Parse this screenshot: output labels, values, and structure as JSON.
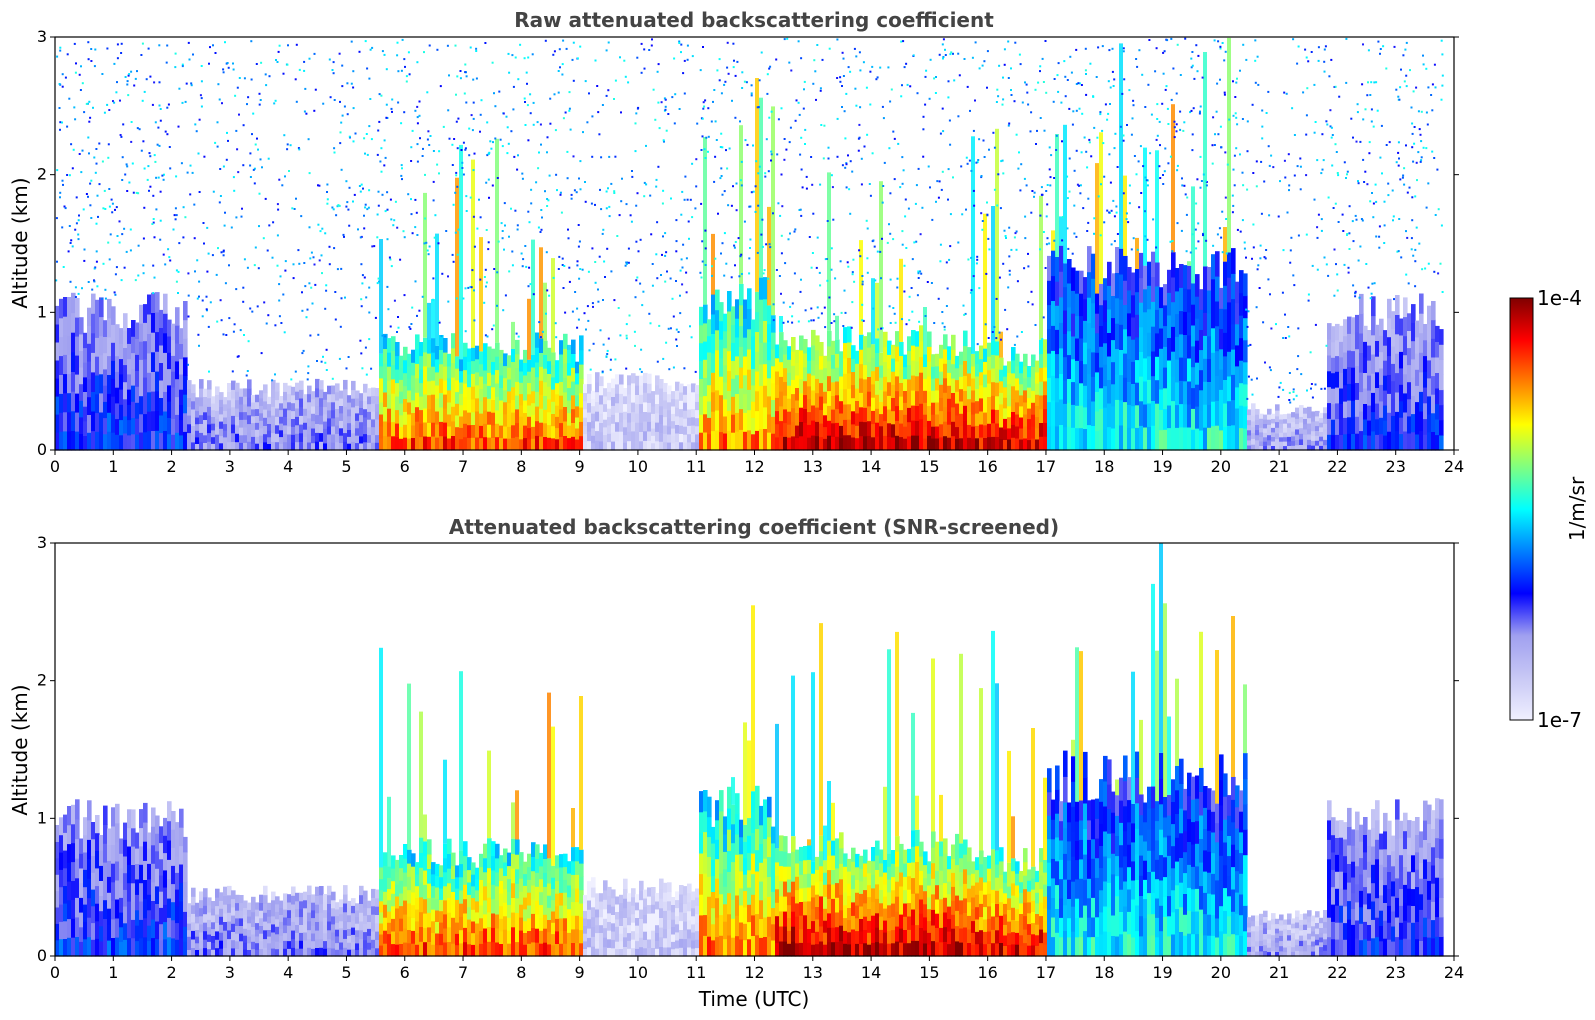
{
  "chart_data": [
    {
      "type": "heatmap",
      "title": "Raw attenuated backscattering coefficient",
      "xlabel": "",
      "ylabel": "Altitude (km)",
      "xlim": [
        0,
        24
      ],
      "ylim": [
        0,
        3
      ],
      "xticks": [
        "0",
        "1",
        "2",
        "3",
        "4",
        "5",
        "6",
        "7",
        "8",
        "9",
        "10",
        "11",
        "12",
        "13",
        "14",
        "15",
        "16",
        "17",
        "18",
        "19",
        "20",
        "21",
        "22",
        "23",
        "24"
      ],
      "yticks": [
        "0",
        "1",
        "2",
        "3"
      ],
      "data_end_hour": 23.8,
      "screened": false,
      "noise_background": true,
      "layers": [
        {
          "t0": 0.0,
          "t1": 2.2,
          "top": 1.0,
          "level": 0.32
        },
        {
          "t0": 2.2,
          "t1": 4.2,
          "top": 0.45,
          "level": 0.22
        },
        {
          "t0": 4.2,
          "t1": 5.5,
          "top": 0.45,
          "level": 0.22
        },
        {
          "t0": 5.5,
          "t1": 9.0,
          "top": 0.75,
          "level": 0.85
        },
        {
          "t0": 9.0,
          "t1": 11.0,
          "top": 0.5,
          "level": 0.1
        },
        {
          "t0": 11.0,
          "t1": 12.3,
          "top": 1.1,
          "level": 0.8
        },
        {
          "t0": 12.3,
          "t1": 15.8,
          "top": 0.8,
          "level": 0.95
        },
        {
          "t0": 15.8,
          "t1": 17.0,
          "top": 0.7,
          "level": 0.92
        },
        {
          "t0": 17.0,
          "t1": 20.4,
          "top": 1.3,
          "level": 0.5
        },
        {
          "t0": 20.4,
          "t1": 21.8,
          "top": 0.3,
          "level": 0.18
        },
        {
          "t0": 21.8,
          "t1": 23.8,
          "top": 1.0,
          "level": 0.3
        }
      ]
    },
    {
      "type": "heatmap",
      "title": "Attenuated backscattering coefficient (SNR-screened)",
      "xlabel": "Time (UTC)",
      "ylabel": "Altitude (km)",
      "xlim": [
        0,
        24
      ],
      "ylim": [
        0,
        3
      ],
      "xticks": [
        "0",
        "1",
        "2",
        "3",
        "4",
        "5",
        "6",
        "7",
        "8",
        "9",
        "10",
        "11",
        "12",
        "13",
        "14",
        "15",
        "16",
        "17",
        "18",
        "19",
        "20",
        "21",
        "22",
        "23",
        "24"
      ],
      "yticks": [
        "0",
        "1",
        "2",
        "3"
      ],
      "data_end_hour": 23.8,
      "screened": true,
      "noise_background": false,
      "layers": [
        {
          "t0": 0.0,
          "t1": 2.2,
          "top": 1.0,
          "level": 0.32
        },
        {
          "t0": 2.2,
          "t1": 4.2,
          "top": 0.45,
          "level": 0.22
        },
        {
          "t0": 4.2,
          "t1": 5.5,
          "top": 0.45,
          "level": 0.22
        },
        {
          "t0": 5.5,
          "t1": 9.0,
          "top": 0.75,
          "level": 0.85
        },
        {
          "t0": 9.0,
          "t1": 11.0,
          "top": 0.5,
          "level": 0.1
        },
        {
          "t0": 11.0,
          "t1": 12.3,
          "top": 1.1,
          "level": 0.8
        },
        {
          "t0": 12.3,
          "t1": 15.8,
          "top": 0.8,
          "level": 0.95
        },
        {
          "t0": 15.8,
          "t1": 17.0,
          "top": 0.7,
          "level": 0.92
        },
        {
          "t0": 17.0,
          "t1": 20.4,
          "top": 1.3,
          "level": 0.5
        },
        {
          "t0": 20.4,
          "t1": 21.8,
          "top": 0.3,
          "level": 0.18
        },
        {
          "t0": 21.8,
          "t1": 23.8,
          "top": 1.0,
          "level": 0.3
        }
      ]
    }
  ],
  "colorbar": {
    "max_label": "1e-4",
    "min_label": "1e-7",
    "unit_label": "1/m/sr",
    "colormap": "jet-with-lavender-low",
    "colors": [
      "#f0f0ff",
      "#c8c8f5",
      "#a0a0f0",
      "#0000ff",
      "#0080ff",
      "#00ffff",
      "#80ff80",
      "#ffff00",
      "#ff8000",
      "#ff0000",
      "#800000"
    ]
  }
}
